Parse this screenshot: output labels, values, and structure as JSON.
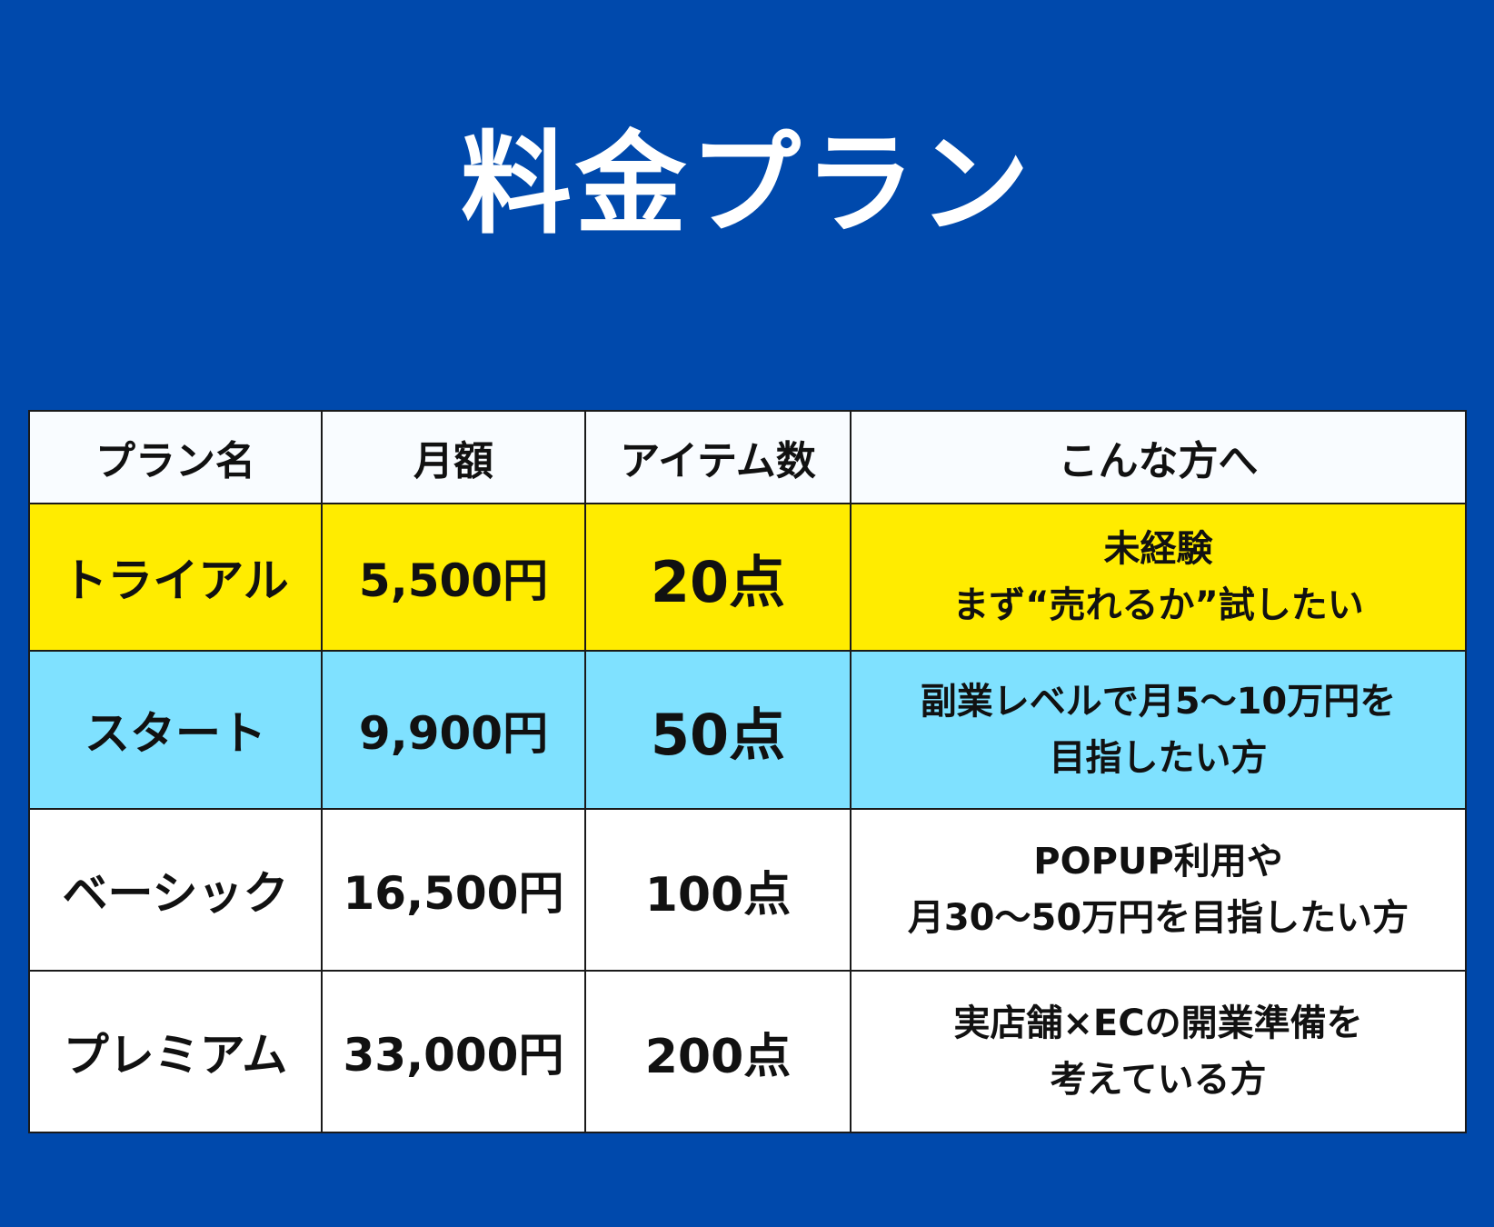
{
  "colors": {
    "background": "#0049ac",
    "title_text": "#ffffff",
    "header_bg": "#f9fcff",
    "trial_bg": "#ffec00",
    "start_bg": "#7fe1ff",
    "basic_bg": "#ffffff",
    "premium_bg": "#ffffff",
    "border": "#1a1a1a",
    "cell_text": "#111111"
  },
  "title": "料金プラン",
  "table": {
    "headers": {
      "plan": "プラン名",
      "price": "月額",
      "items": "アイテム数",
      "target": "こんな方へ"
    },
    "rows": [
      {
        "plan": "トライアル",
        "price": "5,500円",
        "items": "20点",
        "target_lines": [
          "未経験",
          "まず“売れるか”試したい"
        ]
      },
      {
        "plan": "スタート",
        "price": "9,900円",
        "items": "50点",
        "target_lines": [
          "副業レベルで月5〜10万円を",
          "目指したい方"
        ]
      },
      {
        "plan": "ベーシック",
        "price": "16,500円",
        "items": "100点",
        "target_lines": [
          "POPUP利用や",
          "月30〜50万円を目指したい方"
        ]
      },
      {
        "plan": "プレミアム",
        "price": "33,000円",
        "items": "200点",
        "target_lines": [
          "実店舗×ECの開業準備を",
          "考えている方"
        ]
      }
    ]
  }
}
